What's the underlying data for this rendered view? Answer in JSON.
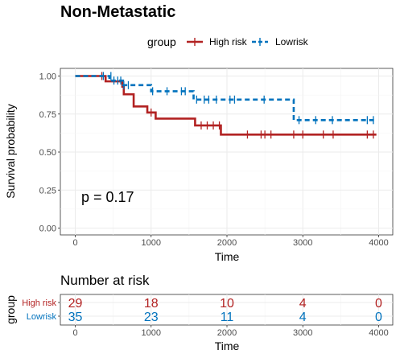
{
  "title": "Non-Metastatic",
  "legend": {
    "title": "group",
    "items": [
      {
        "label": "High risk",
        "color": "#B22222",
        "dash": "solid"
      },
      {
        "label": "Lowrisk",
        "color": "#0072BD",
        "dash": "dashed"
      }
    ]
  },
  "pvalue_text": "p = 0.17",
  "risk_table": {
    "title": "Number at risk",
    "ylabel": "group",
    "xlabel": "Time",
    "times": [
      0,
      1000,
      2000,
      3000,
      4000
    ],
    "rows": [
      {
        "label": "High risk",
        "color": "#B22222",
        "counts": [
          "29",
          "18",
          "10",
          "4",
          "0"
        ]
      },
      {
        "label": "Lowrisk",
        "color": "#0072BD",
        "counts": [
          "35",
          "23",
          "11",
          "4",
          "0"
        ]
      }
    ]
  },
  "chart_data": {
    "type": "line",
    "subtype": "kaplan-meier step",
    "title": "Non-Metastatic",
    "xlabel": "Time",
    "ylabel": "Survival probability",
    "xlim": [
      0,
      4000
    ],
    "ylim": [
      0,
      1
    ],
    "x_ticks": [
      0,
      1000,
      2000,
      3000,
      4000
    ],
    "y_ticks": [
      0.0,
      0.25,
      0.5,
      0.75,
      1.0
    ],
    "y_tick_labels": [
      "0.00",
      "0.25",
      "0.50",
      "0.75",
      "1.00"
    ],
    "grid": true,
    "legend_position": "top",
    "series": [
      {
        "name": "High risk",
        "color": "#B22222",
        "dash": "solid",
        "steps": [
          [
            0,
            1.0
          ],
          [
            400,
            0.965
          ],
          [
            620,
            0.93
          ],
          [
            640,
            0.88
          ],
          [
            770,
            0.8
          ],
          [
            950,
            0.76
          ],
          [
            1060,
            0.72
          ],
          [
            1580,
            0.675
          ],
          [
            1920,
            0.615
          ],
          [
            3970,
            0.615
          ]
        ],
        "censor": [
          [
            350,
            1.0
          ],
          [
            1000,
            0.76
          ],
          [
            1660,
            0.675
          ],
          [
            1740,
            0.675
          ],
          [
            1820,
            0.675
          ],
          [
            1900,
            0.675
          ],
          [
            2270,
            0.615
          ],
          [
            2450,
            0.615
          ],
          [
            2500,
            0.615
          ],
          [
            2580,
            0.615
          ],
          [
            2880,
            0.615
          ],
          [
            3000,
            0.615
          ],
          [
            3270,
            0.615
          ],
          [
            3400,
            0.615
          ],
          [
            3850,
            0.615
          ],
          [
            3930,
            0.615
          ]
        ]
      },
      {
        "name": "Lowrisk",
        "color": "#0072BD",
        "dash": "dashed",
        "steps": [
          [
            0,
            1.0
          ],
          [
            450,
            0.97
          ],
          [
            630,
            0.94
          ],
          [
            1000,
            0.9
          ],
          [
            1560,
            0.845
          ],
          [
            2880,
            0.71
          ],
          [
            3970,
            0.71
          ]
        ],
        "censor": [
          [
            370,
            1.0
          ],
          [
            470,
            1.0
          ],
          [
            510,
            0.97
          ],
          [
            560,
            0.97
          ],
          [
            600,
            0.97
          ],
          [
            640,
            0.94
          ],
          [
            700,
            0.94
          ],
          [
            1020,
            0.9
          ],
          [
            1210,
            0.9
          ],
          [
            1400,
            0.9
          ],
          [
            1450,
            0.9
          ],
          [
            1600,
            0.845
          ],
          [
            1700,
            0.845
          ],
          [
            1760,
            0.845
          ],
          [
            1860,
            0.845
          ],
          [
            2040,
            0.845
          ],
          [
            2100,
            0.845
          ],
          [
            2490,
            0.845
          ],
          [
            2950,
            0.71
          ],
          [
            3170,
            0.71
          ],
          [
            3390,
            0.71
          ],
          [
            3850,
            0.71
          ],
          [
            3930,
            0.71
          ]
        ]
      }
    ],
    "annotations": [
      {
        "text": "p = 0.17",
        "x": 80,
        "y": 0.16
      }
    ]
  }
}
